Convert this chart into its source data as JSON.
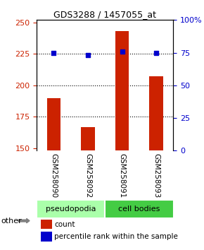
{
  "title": "GDS3288 / 1457055_at",
  "samples": [
    "GSM258090",
    "GSM258092",
    "GSM258091",
    "GSM258093"
  ],
  "counts": [
    190,
    167,
    243,
    207
  ],
  "percentiles": [
    75,
    73,
    76,
    75
  ],
  "ylim_left": [
    148,
    252
  ],
  "ylim_right": [
    0,
    100
  ],
  "yticks_left": [
    150,
    175,
    200,
    225,
    250
  ],
  "yticks_right": [
    0,
    25,
    50,
    75,
    100
  ],
  "ytick_labels_right": [
    "0",
    "25",
    "50",
    "75",
    "100%"
  ],
  "bar_color": "#cc2200",
  "dot_color": "#0000cc",
  "dotted_lines": [
    175,
    200,
    225
  ],
  "groups": [
    {
      "label": "pseudopodia",
      "color": "#aaffaa",
      "indices": [
        0,
        1
      ]
    },
    {
      "label": "cell bodies",
      "color": "#44cc44",
      "indices": [
        2,
        3
      ]
    }
  ],
  "other_label": "other",
  "legend_count_label": "count",
  "legend_pct_label": "percentile rank within the sample",
  "bar_width": 0.4,
  "label_area_color": "#cccccc",
  "group_pseudo_color": "#aaffaa",
  "group_cell_color": "#44cc44"
}
